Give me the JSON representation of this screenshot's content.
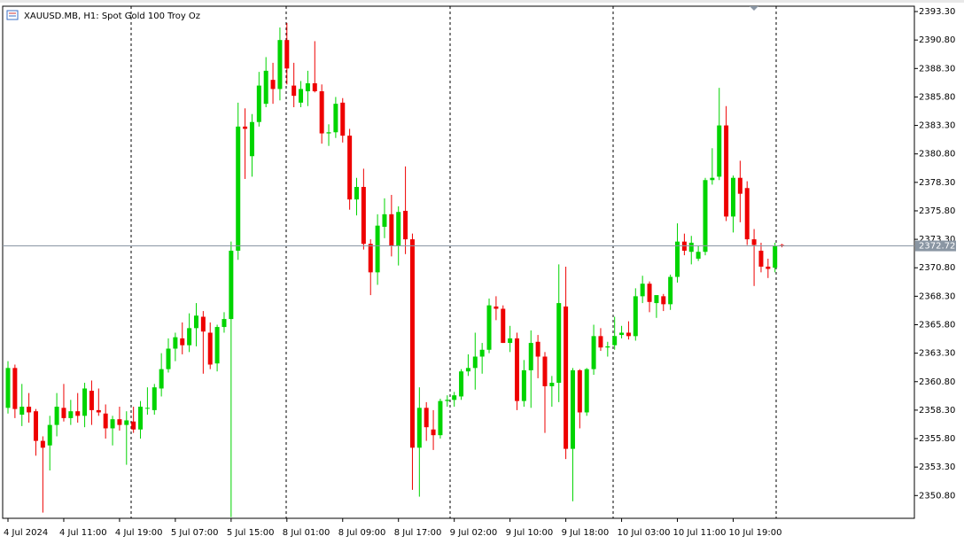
{
  "chart_data": {
    "type": "candlestick",
    "title": "XAUUSD.MB, H1:  Spot Gold 100 Troy Oz",
    "categories": [
      "4 Jul 2024",
      null,
      null,
      null,
      null,
      null,
      null,
      null,
      "4 Jul 11:00",
      null,
      null,
      null,
      null,
      null,
      null,
      null,
      "4 Jul 19:00",
      null,
      null,
      null,
      null,
      null,
      null,
      null,
      "5 Jul 07:00",
      null,
      null,
      null,
      null,
      null,
      null,
      null,
      "5 Jul 15:00",
      null,
      null,
      null,
      null,
      null,
      null,
      null,
      "8 Jul 01:00",
      null,
      null,
      null,
      null,
      null,
      null,
      null,
      "8 Jul 09:00",
      null,
      null,
      null,
      null,
      null,
      null,
      null,
      "8 Jul 17:00",
      null,
      null,
      null,
      null,
      null,
      null,
      null,
      "9 Jul 02:00",
      null,
      null,
      null,
      null,
      null,
      null,
      null,
      "9 Jul 10:00",
      null,
      null,
      null,
      null,
      null,
      null,
      null,
      "9 Jul 18:00",
      null,
      null,
      null,
      null,
      null,
      null,
      null,
      "10 Jul 03:00",
      null,
      null,
      null,
      null,
      null,
      null,
      null,
      "10 Jul 11:00",
      null,
      null,
      null,
      null,
      null,
      null,
      null,
      "10 Jul 19:00",
      null,
      null,
      null,
      null,
      null,
      null,
      null
    ],
    "open": [
      2358.5,
      2362.0,
      2357.9,
      2358.6,
      2358.2,
      2355.6,
      2355.2,
      2357.0,
      2358.5,
      2357.6,
      2358.2,
      2357.8,
      2360.0,
      2358.3,
      2358.0,
      2356.7,
      2357.5,
      2357.0,
      2357.3,
      2356.6,
      2358.5,
      2358.3,
      2360.2,
      2361.9,
      2363.7,
      2364.6,
      2364.0,
      2365.5,
      2366.5,
      2365.1,
      2362.4,
      2365.6,
      2366.3,
      2372.3,
      2383.2,
      2380.6,
      2383.6,
      2385.2,
      2387.3,
      2386.5,
      2390.8,
      2386.8,
      2385.3,
      2386.3,
      2387.0,
      2386.3,
      2382.6,
      2382.7,
      2385.3,
      2382.4,
      2376.8,
      2377.9,
      2372.9,
      2370.4,
      2374.4,
      2375.5,
      2372.7,
      2375.8,
      2373.3,
      2355.0,
      2358.5,
      2356.6,
      2356.1,
      2359.1,
      2359.2,
      2359.5,
      2361.7,
      2362.0,
      2363.0,
      2363.6,
      2367.4,
      2367.2,
      2364.2,
      2364.6,
      2359.1,
      2361.8,
      2364.3,
      2363.0,
      2360.4,
      2360.7,
      2367.4,
      2354.9,
      2361.8,
      2358.1,
      2361.9,
      2364.8,
      2363.8,
      2364.0,
      2364.9,
      2365.1,
      2364.8,
      2368.3,
      2369.4,
      2367.7,
      2368.3,
      2367.6,
      2370.0,
      2373.1,
      2372.2,
      2371.6,
      2372.2,
      2378.5,
      2378.8,
      2383.3,
      2375.3,
      2378.7,
      2377.8,
      2373.3,
      2372.3,
      2370.9,
      2370.8,
      2372.8
    ],
    "high": [
      2362.6,
      2362.3,
      2360.6,
      2359.8,
      2358.4,
      2356.0,
      2357.8,
      2359.8,
      2360.6,
      2359.2,
      2359.8,
      2360.7,
      2360.9,
      2360.2,
      2358.8,
      2357.8,
      2358.6,
      2358.2,
      2358.6,
      2359.1,
      2360.3,
      2360.6,
      2363.3,
      2364.6,
      2365.1,
      2366.0,
      2366.8,
      2367.7,
      2367.0,
      2366.0,
      2365.8,
      2366.9,
      2373.1,
      2385.3,
      2384.8,
      2384.3,
      2388.0,
      2389.3,
      2388.8,
      2391.9,
      2392.3,
      2388.8,
      2387.2,
      2388.1,
      2390.7,
      2386.9,
      2383.4,
      2385.8,
      2385.7,
      2383.0,
      2378.7,
      2379.5,
      2373.3,
      2375.5,
      2376.9,
      2377.2,
      2376.2,
      2379.7,
      2373.8,
      2360.3,
      2359.0,
      2358.3,
      2359.3,
      2359.6,
      2359.9,
      2361.9,
      2363.2,
      2365.1,
      2364.2,
      2368.1,
      2368.3,
      2367.5,
      2365.7,
      2365.1,
      2362.7,
      2365.3,
      2364.9,
      2363.4,
      2361.3,
      2371.1,
      2370.9,
      2362.0,
      2361.9,
      2362.0,
      2365.8,
      2365.5,
      2364.3,
      2366.5,
      2365.7,
      2366.1,
      2369.0,
      2370.1,
      2369.6,
      2368.3,
      2368.5,
      2370.2,
      2374.7,
      2373.8,
      2373.6,
      2372.7,
      2378.7,
      2381.3,
      2386.6,
      2385.0,
      2378.9,
      2380.2,
      2378.4,
      2374.2,
      2373.0,
      2371.6,
      2373.0,
      2372.9
    ],
    "low": [
      2358.0,
      2357.6,
      2356.9,
      2357.2,
      2354.3,
      2349.3,
      2353.0,
      2356.0,
      2357.3,
      2357.0,
      2357.2,
      2356.8,
      2357.0,
      2357.8,
      2355.8,
      2355.2,
      2356.5,
      2353.5,
      2356.3,
      2355.8,
      2357.9,
      2357.9,
      2359.5,
      2361.6,
      2362.6,
      2363.2,
      2363.4,
      2363.9,
      2361.5,
      2361.9,
      2361.7,
      2365.1,
      2348.9,
      2371.5,
      2378.6,
      2378.8,
      2383.2,
      2384.9,
      2385.2,
      2385.5,
      2386.9,
      2384.9,
      2384.9,
      2385.0,
      2386.2,
      2381.7,
      2381.5,
      2382.2,
      2381.8,
      2375.9,
      2375.4,
      2372.4,
      2368.4,
      2369.3,
      2373.4,
      2371.8,
      2371.0,
      2372.0,
      2351.3,
      2350.7,
      2355.6,
      2354.8,
      2355.8,
      2358.6,
      2358.6,
      2359.2,
      2361.3,
      2360.1,
      2361.5,
      2363.3,
      2366.2,
      2364.2,
      2363.4,
      2358.3,
      2358.6,
      2358.5,
      2361.1,
      2356.3,
      2358.6,
      2359.0,
      2354.0,
      2350.3,
      2356.7,
      2357.8,
      2361.4,
      2363.5,
      2363.0,
      2363.6,
      2364.6,
      2364.5,
      2364.4,
      2367.7,
      2366.9,
      2366.4,
      2367.0,
      2367.1,
      2369.5,
      2371.9,
      2371.1,
      2371.4,
      2371.9,
      2378.1,
      2378.5,
      2374.9,
      2373.9,
      2374.8,
      2372.8,
      2369.2,
      2370.4,
      2369.9,
      2370.4,
      2372.6
    ],
    "close": [
      2362.0,
      2358.4,
      2358.6,
      2358.1,
      2355.6,
      2355.0,
      2357.0,
      2358.6,
      2357.6,
      2358.2,
      2357.8,
      2360.2,
      2358.3,
      2358.1,
      2356.7,
      2357.5,
      2357.0,
      2357.4,
      2356.6,
      2358.6,
      2358.5,
      2360.3,
      2361.9,
      2363.7,
      2364.7,
      2364.0,
      2365.5,
      2366.6,
      2365.2,
      2362.3,
      2365.6,
      2366.3,
      2372.3,
      2383.2,
      2383.0,
      2383.6,
      2386.8,
      2388.1,
      2386.5,
      2390.8,
      2388.3,
      2385.9,
      2386.5,
      2387.0,
      2386.3,
      2382.6,
      2382.7,
      2385.2,
      2382.4,
      2376.8,
      2377.9,
      2372.9,
      2370.4,
      2374.5,
      2375.5,
      2372.7,
      2375.7,
      2373.3,
      2355.0,
      2358.5,
      2356.8,
      2356.1,
      2359.1,
      2359.2,
      2359.6,
      2361.7,
      2362.0,
      2363.0,
      2363.6,
      2367.5,
      2367.2,
      2364.2,
      2364.6,
      2359.1,
      2361.8,
      2364.2,
      2363.0,
      2360.4,
      2360.7,
      2367.7,
      2354.9,
      2361.8,
      2358.1,
      2361.9,
      2364.8,
      2363.8,
      2363.9,
      2364.8,
      2365.1,
      2364.8,
      2368.3,
      2369.4,
      2367.8,
      2368.4,
      2367.6,
      2370.0,
      2373.1,
      2372.3,
      2373.0,
      2372.2,
      2378.5,
      2378.7,
      2383.3,
      2375.3,
      2378.7,
      2377.3,
      2373.3,
      2372.8,
      2370.9,
      2370.7,
      2372.7,
      2372.7
    ],
    "up_color": "#00d400",
    "down_color": "#ee0000",
    "ylim": [
      2348.8,
      2393.77
    ],
    "yticks": [
      {
        "value": 2350.8,
        "label": "2350.80"
      },
      {
        "value": 2353.3,
        "label": "2353.30"
      },
      {
        "value": 2355.8,
        "label": "2355.80"
      },
      {
        "value": 2358.3,
        "label": "2358.30"
      },
      {
        "value": 2360.8,
        "label": "2360.80"
      },
      {
        "value": 2363.3,
        "label": "2363.30"
      },
      {
        "value": 2365.8,
        "label": "2365.80"
      },
      {
        "value": 2368.3,
        "label": "2368.30"
      },
      {
        "value": 2370.8,
        "label": "2370.80"
      },
      {
        "value": 2373.3,
        "label": "2373.30"
      },
      {
        "value": 2375.8,
        "label": "2375.80"
      },
      {
        "value": 2378.3,
        "label": "2378.30"
      },
      {
        "value": 2380.8,
        "label": "2380.80"
      },
      {
        "value": 2383.3,
        "label": "2383.30"
      },
      {
        "value": 2385.8,
        "label": "2385.80"
      },
      {
        "value": 2388.3,
        "label": "2388.30"
      },
      {
        "value": 2390.8,
        "label": "2390.80"
      },
      {
        "value": 2393.3,
        "label": "2393.30"
      }
    ],
    "last_price": 2372.72,
    "last_price_color": "#8a96a3"
  }
}
